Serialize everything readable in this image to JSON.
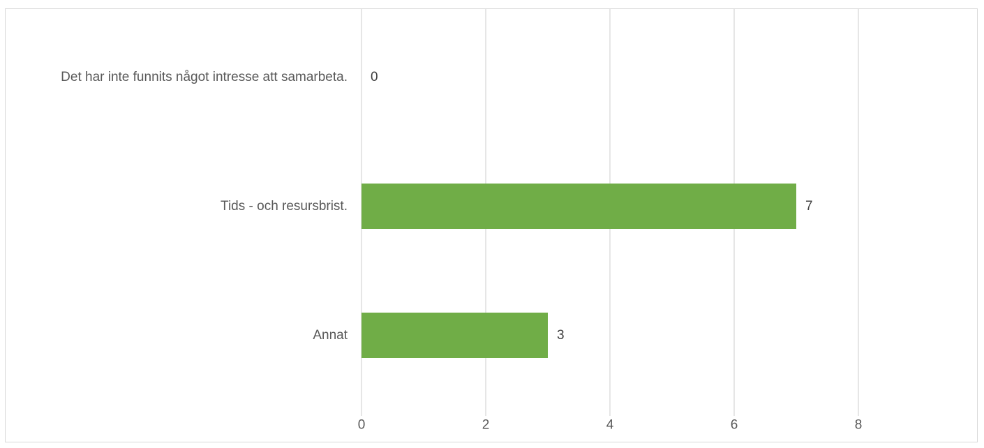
{
  "chart_data": {
    "type": "bar",
    "orientation": "horizontal",
    "categories": [
      "Det har inte funnits något intresse att samarbeta.",
      "Tids - och resursbrist.",
      "Annat"
    ],
    "values": [
      0,
      7,
      3
    ],
    "data_labels": [
      "0",
      "7",
      "3"
    ],
    "title": "",
    "xlabel": "",
    "ylabel": "",
    "xlim": [
      0,
      10
    ],
    "x_ticks": [
      0,
      2,
      4,
      6,
      8
    ],
    "x_tick_labels": [
      "0",
      "2",
      "4",
      "6",
      "8"
    ],
    "grid": "vertical",
    "legend": "none",
    "bar_color": "#70ad47"
  }
}
